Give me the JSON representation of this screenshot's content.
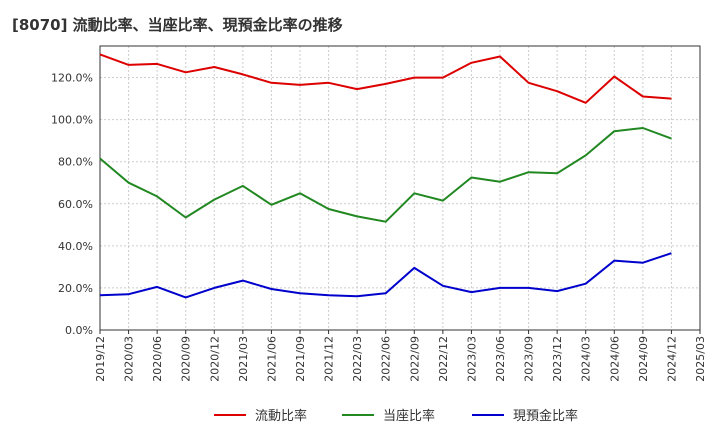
{
  "chart_data": {
    "type": "line",
    "title": "[8070]  流動比率、当座比率、現預金比率の推移",
    "xlabel": "",
    "ylabel": "",
    "ylim": [
      0,
      135
    ],
    "yticks": [
      0,
      20,
      40,
      60,
      80,
      100,
      120
    ],
    "ytick_labels": [
      "0.0%",
      "20.0%",
      "40.0%",
      "60.0%",
      "80.0%",
      "100.0%",
      "120.0%"
    ],
    "x_tick_labels": [
      "2019/12",
      "2020/03",
      "2020/06",
      "2020/09",
      "2020/12",
      "2021/03",
      "2021/06",
      "2021/09",
      "2021/12",
      "2022/03",
      "2022/06",
      "2022/09",
      "2022/12",
      "2023/03",
      "2023/06",
      "2023/09",
      "2023/12",
      "2024/03",
      "2024/06",
      "2024/09",
      "2024/12",
      "2025/03"
    ],
    "categories": [
      "2019/12",
      "2020/03",
      "2020/06",
      "2020/09",
      "2020/12",
      "2021/03",
      "2021/06",
      "2021/09",
      "2021/12",
      "2022/03",
      "2022/06",
      "2022/09",
      "2022/12",
      "2023/03",
      "2023/06",
      "2023/09",
      "2023/12",
      "2024/03",
      "2024/06",
      "2024/09",
      "2024/12"
    ],
    "grid": true,
    "legend_position": "bottom",
    "series": [
      {
        "name": "流動比率",
        "color": "#dd0000",
        "values": [
          131,
          126,
          126.5,
          122.5,
          125,
          121.5,
          117.5,
          116.5,
          117.5,
          114.5,
          117,
          120,
          120,
          127,
          130,
          117.5,
          113.5,
          108,
          120.5,
          111,
          110
        ]
      },
      {
        "name": "当座比率",
        "color": "#228822",
        "values": [
          81.5,
          70,
          63.5,
          53.5,
          62,
          68.5,
          59.5,
          65,
          57.5,
          54,
          51.5,
          65,
          61.5,
          72.5,
          70.5,
          75,
          74.5,
          83,
          94.5,
          96,
          91
        ]
      },
      {
        "name": "現預金比率",
        "color": "#0000cc",
        "values": [
          16.5,
          17,
          20.5,
          15.5,
          20,
          23.5,
          19.5,
          17.5,
          16.5,
          16,
          17.5,
          29.5,
          21,
          18,
          20,
          20,
          18.5,
          22,
          33,
          32,
          36.5
        ]
      }
    ]
  }
}
